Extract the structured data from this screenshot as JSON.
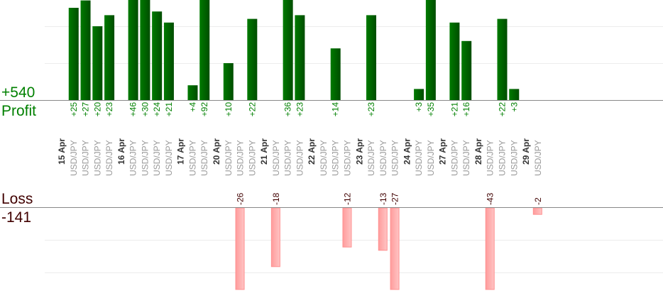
{
  "summary": {
    "profit_total": "+540",
    "profit_label": "Profit",
    "loss_label": "Loss",
    "loss_total": "-141"
  },
  "colors": {
    "profit_bar": "#006400",
    "profit_text": "#008000",
    "loss_bar": "#ffb0b0",
    "loss_text": "#400000",
    "date_text": "#333333",
    "symbol_text": "#999999"
  },
  "chart_data": {
    "type": "bar",
    "grid": true,
    "gridline_step": 10,
    "groups": [
      {
        "date": "15 Apr",
        "trades": [
          {
            "symbol": "USD/JPY",
            "value": 25
          },
          {
            "symbol": "USD/JPY",
            "value": 27
          },
          {
            "symbol": "USD/JPY",
            "value": 20
          },
          {
            "symbol": "USD/JPY",
            "value": 23
          }
        ]
      },
      {
        "date": "16 Apr",
        "trades": [
          {
            "symbol": "USD/JPY",
            "value": 46
          },
          {
            "symbol": "USD/JPY",
            "value": 30
          },
          {
            "symbol": "USD/JPY",
            "value": 24
          },
          {
            "symbol": "USD/JPY",
            "value": 21
          }
        ]
      },
      {
        "date": "17 Apr",
        "trades": [
          {
            "symbol": "USD/JPY",
            "value": 4
          },
          {
            "symbol": "USD/JPY",
            "value": 92
          }
        ]
      },
      {
        "date": "20 Apr",
        "trades": [
          {
            "symbol": "USD/JPY",
            "value": 10
          },
          {
            "symbol": "USD/JPY",
            "value": -26
          },
          {
            "symbol": "USD/JPY",
            "value": 22
          }
        ]
      },
      {
        "date": "21 Apr",
        "trades": [
          {
            "symbol": "USD/JPY",
            "value": -18
          },
          {
            "symbol": "USD/JPY",
            "value": 36
          },
          {
            "symbol": "USD/JPY",
            "value": 23
          }
        ]
      },
      {
        "date": "22 Apr",
        "trades": [
          {
            "symbol": "USD/JPY",
            "value": 0
          },
          {
            "symbol": "USD/JPY",
            "value": 14
          },
          {
            "symbol": "USD/JPY",
            "value": -12
          }
        ]
      },
      {
        "date": "23 Apr",
        "trades": [
          {
            "symbol": "USD/JPY",
            "value": 23
          },
          {
            "symbol": "USD/JPY",
            "value": -13
          },
          {
            "symbol": "USD/JPY",
            "value": -27
          }
        ]
      },
      {
        "date": "24 Apr",
        "trades": [
          {
            "symbol": "USD/JPY",
            "value": 3
          },
          {
            "symbol": "USD/JPY",
            "value": 35
          }
        ]
      },
      {
        "date": "27 Apr",
        "trades": [
          {
            "symbol": "USD/JPY",
            "value": 21
          },
          {
            "symbol": "USD/JPY",
            "value": 16
          }
        ]
      },
      {
        "date": "28 Apr",
        "trades": [
          {
            "symbol": "USD/JPY",
            "value": -43
          },
          {
            "symbol": "USD/JPY",
            "value": 22
          },
          {
            "symbol": "USD/JPY",
            "value": 3
          }
        ]
      },
      {
        "date": "29 Apr",
        "trades": [
          {
            "symbol": "USD/JPY",
            "value": -2
          }
        ]
      }
    ]
  }
}
